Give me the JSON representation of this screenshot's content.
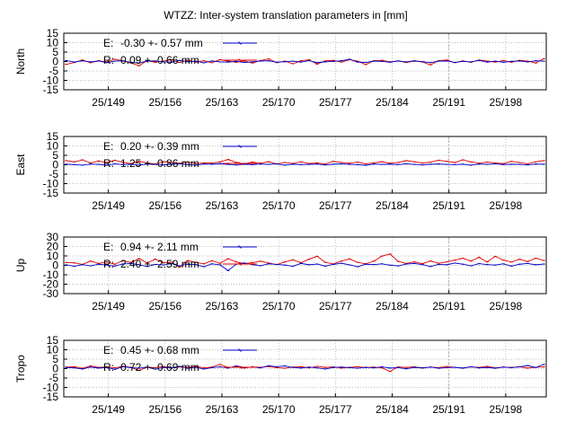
{
  "chart_data": {
    "title": "WTZZ: Inter-system translation parameters in [mm]",
    "type": "line",
    "x_tick_labels": [
      "25/149",
      "25/156",
      "25/163",
      "25/170",
      "25/177",
      "25/184",
      "25/191",
      "25/198"
    ],
    "x_tick_values": [
      149,
      156,
      163,
      170,
      177,
      184,
      191,
      198
    ],
    "xlim": [
      143.5,
      203
    ],
    "highlight_start": 191,
    "panels": [
      {
        "ylabel": "North",
        "ylim": [
          -15,
          15
        ],
        "yticks": [
          15,
          10,
          5,
          0,
          -5,
          -10,
          -15
        ],
        "series": [
          {
            "label": "E:",
            "stats": "-0.30 +- 0.57 mm",
            "color": "#0000cc",
            "values": [
              0.5,
              -0.3,
              0.4,
              -0.2,
              0.3,
              -0.6,
              0.2,
              0.4,
              -0.5,
              -0.8,
              0.2,
              0.3,
              -0.2,
              -0.4,
              0.6,
              -0.1,
              0.2,
              -0.7,
              0.3,
              -0.2,
              -0.3,
              0.1,
              -0.5,
              -0.2,
              0.3,
              0.4,
              -0.4,
              -0.1,
              0.2,
              -0.3,
              0.5,
              -0.6,
              -0.2,
              0.1,
              0.4,
              1.2,
              -0.3,
              -0.5,
              0.2,
              0.1,
              -0.4,
              0.3,
              -0.2,
              0.4,
              -0.1,
              -0.6,
              0.2,
              0.3,
              -0.5,
              0.1,
              -0.2,
              0.6,
              -0.3,
              0.2,
              -0.4,
              0.1,
              0.3,
              -0.2,
              0.4,
              0.2
            ]
          },
          {
            "label": "R:",
            "stats": "0.09 +- 0.66 mm",
            "color": "#dd0000",
            "values": [
              -1.5,
              -0.5,
              0.8,
              -0.6,
              0.4,
              -0.2,
              1.2,
              0.3,
              -0.8,
              -2.2,
              0.5,
              -0.4,
              0.2,
              0.9,
              -0.5,
              0.6,
              -0.3,
              0.4,
              -0.6,
              1.0,
              0.2,
              -0.4,
              0.3,
              -0.8,
              0.5,
              1.4,
              -0.6,
              0.2,
              -1.2,
              0.4,
              0.9,
              -1.4,
              0.3,
              0.6,
              -0.3,
              1.0,
              0.2,
              -1.6,
              0.4,
              0.6,
              -0.2,
              0.3,
              -0.5,
              0.2,
              -0.2,
              -1.8,
              0.4,
              0.8,
              -0.6,
              0.3,
              -0.4,
              0.8,
              0.2,
              -0.3,
              0.5,
              -0.4,
              0.6,
              0.2,
              -0.8,
              1.5
            ]
          }
        ]
      },
      {
        "ylabel": "East",
        "ylim": [
          -15,
          15
        ],
        "yticks": [
          15,
          10,
          5,
          0,
          -5,
          -10,
          -15
        ],
        "series": [
          {
            "label": "E:",
            "stats": "0.20 +- 0.39 mm",
            "color": "#0000cc",
            "values": [
              0.3,
              0.1,
              -0.2,
              0.4,
              0.2,
              -0.3,
              0.5,
              0.1,
              0.3,
              -0.2,
              0.4,
              0.2,
              -0.1,
              0.3,
              0.5,
              0.1,
              -0.2,
              0.4,
              0.3,
              0.6,
              0.2,
              -0.1,
              0.3,
              0.1,
              0.4,
              0.2,
              0.5,
              -0.2,
              0.3,
              0.1,
              0.2,
              0.4,
              -0.1,
              0.3,
              0.5,
              0.2,
              0.1,
              -0.3,
              0.4,
              0.2,
              0.3,
              0.1,
              0.5,
              0.2,
              -0.1,
              0.3,
              0.4,
              0.2,
              0.1,
              0.3,
              -0.2,
              0.4,
              0.2,
              0.5,
              0.1,
              0.3,
              0.2,
              -0.1,
              0.4,
              0.3
            ]
          },
          {
            "label": "R:",
            "stats": "1.25 +- 0.86 mm",
            "color": "#dd0000",
            "values": [
              2.2,
              1.5,
              2.6,
              1.0,
              2.0,
              1.2,
              2.4,
              1.3,
              0.6,
              1.8,
              1.0,
              0.4,
              1.6,
              1.2,
              0.8,
              1.4,
              0.6,
              1.0,
              0.9,
              1.5,
              2.8,
              1.2,
              0.5,
              1.4,
              0.8,
              1.6,
              0.4,
              1.2,
              0.7,
              1.5,
              0.6,
              1.0,
              0.4,
              1.8,
              1.2,
              0.8,
              1.4,
              0.5,
              1.0,
              1.6,
              0.8,
              1.2,
              2.2,
              1.6,
              0.9,
              1.4,
              2.4,
              1.8,
              1.2,
              2.6,
              1.5,
              0.8,
              1.4,
              1.0,
              0.6,
              1.8,
              1.2,
              0.5,
              1.6,
              2.2
            ]
          }
        ]
      },
      {
        "ylabel": "Up",
        "ylim": [
          -30,
          30
        ],
        "yticks": [
          30,
          20,
          10,
          0,
          -10,
          -20,
          -30
        ],
        "series": [
          {
            "label": "E:",
            "stats": "0.94 +- 2.11 mm",
            "color": "#0000cc",
            "values": [
              0.5,
              -1.0,
              0.8,
              -0.5,
              1.2,
              0.3,
              -0.8,
              1.5,
              2.0,
              0.6,
              -1.2,
              1.0,
              0.4,
              1.8,
              -0.6,
              1.2,
              0.8,
              -1.5,
              1.6,
              0.5,
              -5.5,
              1.2,
              2.5,
              0.8,
              -0.4,
              1.6,
              1.0,
              0.3,
              -1.0,
              2.0,
              0.6,
              1.4,
              -0.8,
              1.0,
              2.2,
              0.5,
              -1.5,
              1.2,
              0.8,
              1.6,
              0.2,
              -0.6,
              1.4,
              2.0,
              0.8,
              -1.2,
              1.0,
              0.6,
              2.4,
              1.2,
              -0.5,
              1.8,
              0.8,
              0.3,
              1.6,
              -0.8,
              1.2,
              2.0,
              0.6,
              1.4
            ]
          },
          {
            "label": "R:",
            "stats": "2.40 +- 2.59 mm",
            "color": "#dd0000",
            "values": [
              3.0,
              2.6,
              1.0,
              4.5,
              2.0,
              3.6,
              1.2,
              5.0,
              3.0,
              7.2,
              2.4,
              6.6,
              2.6,
              3.4,
              -2.0,
              5.0,
              3.2,
              1.6,
              4.8,
              2.2,
              7.0,
              3.6,
              1.8,
              2.8,
              4.4,
              2.4,
              0.8,
              3.6,
              5.8,
              2.8,
              6.5,
              9.6,
              3.2,
              1.5,
              4.6,
              6.8,
              3.2,
              1.6,
              4.4,
              9.8,
              12.0,
              4.2,
              2.0,
              3.6,
              1.8,
              4.6,
              2.2,
              3.6,
              5.5,
              7.5,
              4.5,
              8.5,
              3.6,
              9.5,
              5.6,
              3.5,
              6.5,
              4.0,
              7.5,
              5.2
            ]
          }
        ]
      },
      {
        "ylabel": "Tropo",
        "ylim": [
          -15,
          15
        ],
        "yticks": [
          15,
          10,
          5,
          0,
          -5,
          -10,
          -15
        ],
        "series": [
          {
            "label": "E:",
            "stats": "0.45 +- 0.68 mm",
            "color": "#0000cc",
            "values": [
              0.6,
              0.4,
              -0.2,
              0.8,
              0.3,
              0.6,
              -0.4,
              1.0,
              0.5,
              0.2,
              0.8,
              -0.3,
              0.6,
              0.4,
              1.2,
              0.2,
              0.7,
              -0.2,
              0.5,
              0.9,
              0.3,
              1.4,
              0.6,
              0.8,
              0.4,
              1.5,
              1.0,
              1.4,
              0.6,
              0.3,
              0.8,
              0.4,
              -0.2,
              0.6,
              0.8,
              0.5,
              0.2,
              0.7,
              0.4,
              0.9,
              0.3,
              0.5,
              -0.1,
              0.6,
              0.4,
              0.8,
              0.2,
              0.5,
              0.7,
              0.3,
              1.0,
              0.4,
              0.6,
              0.2,
              0.8,
              0.5,
              0.9,
              1.6,
              0.6,
              2.2
            ]
          },
          {
            "label": "R:",
            "stats": "0.72 +- 0.69 mm",
            "color": "#dd0000",
            "values": [
              0.8,
              1.0,
              0.2,
              1.4,
              0.6,
              0.9,
              0.4,
              1.2,
              0.7,
              -1.0,
              0.8,
              0.5,
              1.1,
              0.3,
              0.9,
              0.6,
              1.2,
              0.4,
              0.8,
              2.2,
              0.6,
              1.0,
              0.3,
              0.9,
              0.7,
              1.1,
              0.5,
              0.2,
              0.8,
              1.0,
              0.4,
              1.2,
              0.6,
              0.9,
              0.3,
              0.7,
              1.0,
              0.5,
              0.8,
              0.4,
              -1.5,
              0.9,
              0.6,
              1.0,
              0.3,
              0.8,
              0.5,
              1.1,
              0.7,
              0.2,
              0.9,
              0.6,
              1.2,
              0.4,
              0.8,
              0.6,
              1.0,
              0.3,
              0.7,
              0.9
            ]
          }
        ]
      }
    ]
  }
}
